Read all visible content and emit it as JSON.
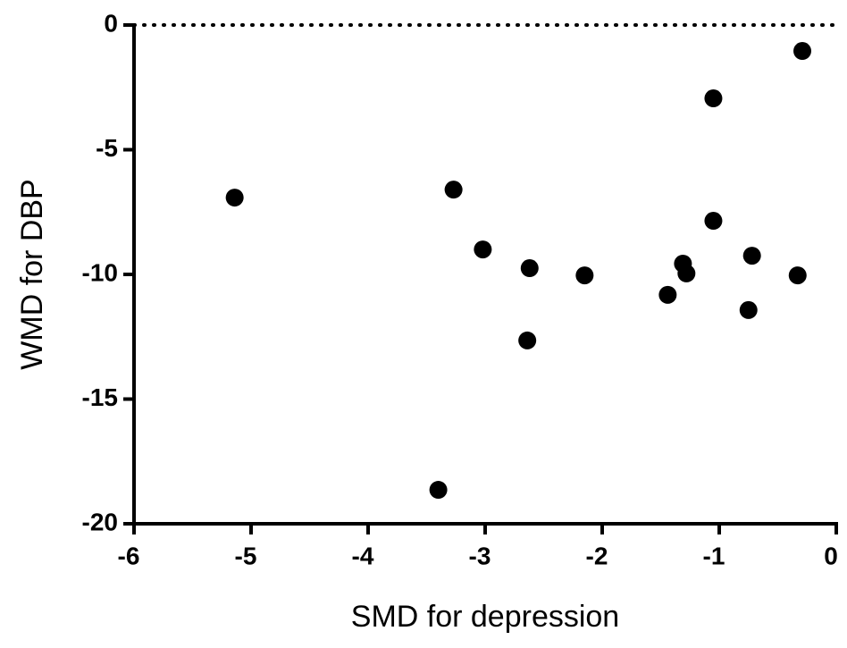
{
  "chart_data": {
    "type": "scatter",
    "x_label": "SMD for depression",
    "y_label": "WMD for DBP",
    "x": [
      -5.14,
      -3.27,
      -3.02,
      -2.62,
      -2.64,
      -2.15,
      -3.4,
      -1.44,
      -1.31,
      -1.28,
      -1.05,
      -1.05,
      -0.72,
      -0.75,
      -0.33,
      -0.29
    ],
    "values": [
      -6.92,
      -6.6,
      -9.0,
      -9.75,
      -12.65,
      -10.04,
      -18.64,
      -10.82,
      -9.57,
      -9.96,
      -2.94,
      -7.85,
      -9.25,
      -11.43,
      -10.04,
      -1.04
    ],
    "color": "#000000",
    "xlim": [
      -6,
      0
    ],
    "xticks": [
      -6,
      -5,
      -4,
      -3,
      -2,
      -1,
      0
    ],
    "ylim": [
      -20,
      0
    ],
    "yticks": [
      -20,
      -15,
      -10,
      -5,
      0
    ],
    "hline": 0
  }
}
